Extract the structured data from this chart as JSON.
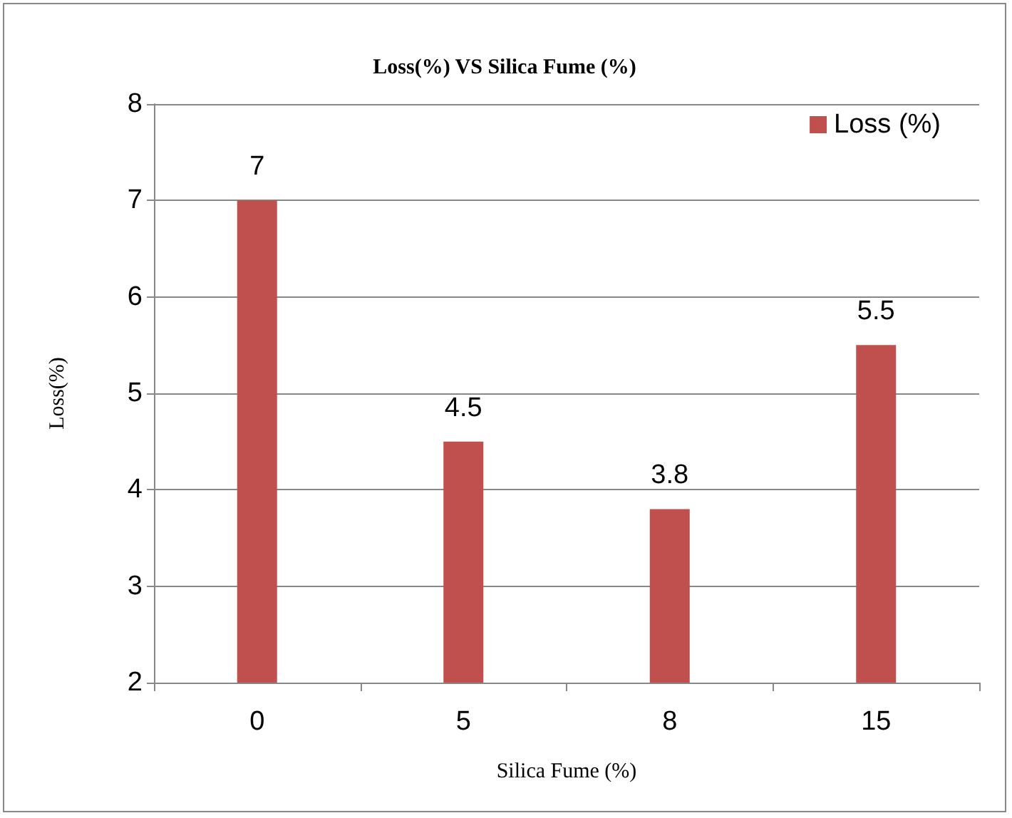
{
  "chart_data": {
    "type": "bar",
    "title": "Loss(%) VS Silica Fume (%)",
    "xlabel": "Silica Fume (%)",
    "ylabel": "Loss(%)",
    "categories": [
      "0",
      "5",
      "8",
      "15"
    ],
    "series": [
      {
        "name": "Loss (%)",
        "color": "#c0504d",
        "values": [
          7,
          4.5,
          3.8,
          5.5
        ]
      }
    ],
    "ylim": [
      2,
      8
    ],
    "yticks": [
      2,
      3,
      4,
      5,
      6,
      7,
      8
    ],
    "grid": "y",
    "legend": "top right",
    "data_labels": true
  }
}
